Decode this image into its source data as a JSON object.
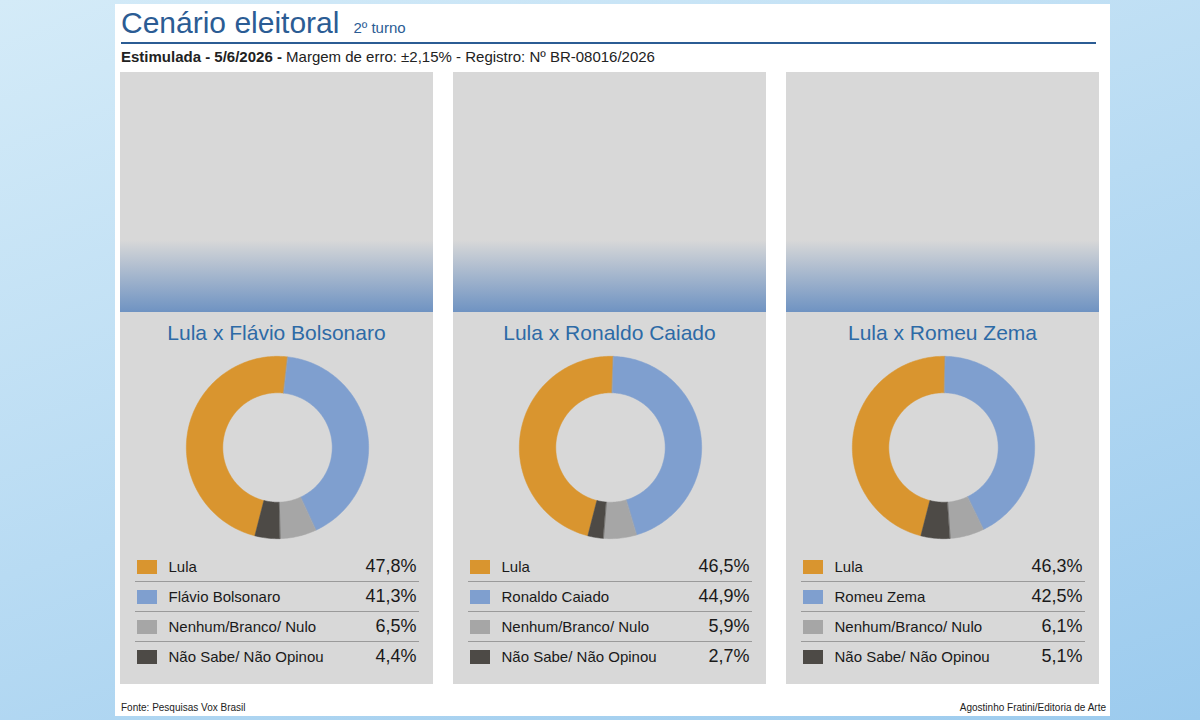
{
  "header": {
    "title": "Cenário eleitoral",
    "subtitle": "2º turno",
    "line_bold": "Estimulada - 5/6/2026 -",
    "line": "Margem de erro: ±2,15% - Registro: Nº BR-08016/2026"
  },
  "footer": {
    "source": "Fonte: Pesquisas Vox Brasil",
    "credit": "Agostinho Fratini/Editoria de Arte"
  },
  "chart_data": [
    {
      "type": "donut",
      "title": "Lula x Flávio Bolsonaro",
      "categories": [
        "Lula",
        "Flávio Bolsonaro",
        "Nenhum/Branco/ Nulo",
        "Não Sabe/ Não Opinou"
      ],
      "values": [
        47.8,
        41.3,
        6.5,
        4.4
      ],
      "value_labels": [
        "47,8%",
        "41,3%",
        "6,5%",
        "4,4%"
      ],
      "colors": [
        "#d9952f",
        "#7f9fcf",
        "#a6a6a6",
        "#4d4a46"
      ],
      "legend": "bottom"
    },
    {
      "type": "donut",
      "title": "Lula x Ronaldo Caiado",
      "categories": [
        "Lula",
        "Ronaldo Caiado",
        "Nenhum/Branco/ Nulo",
        "Não Sabe/ Não Opinou"
      ],
      "values": [
        46.5,
        44.9,
        5.9,
        2.7
      ],
      "value_labels": [
        "46,5%",
        "44,9%",
        "5,9%",
        "2,7%"
      ],
      "colors": [
        "#d9952f",
        "#7f9fcf",
        "#a6a6a6",
        "#4d4a46"
      ],
      "legend": "bottom"
    },
    {
      "type": "donut",
      "title": "Lula x Romeu Zema",
      "categories": [
        "Lula",
        "Romeu Zema",
        "Nenhum/Branco/ Nulo",
        "Não Sabe/ Não Opinou"
      ],
      "values": [
        46.3,
        42.5,
        6.1,
        5.1
      ],
      "value_labels": [
        "46,3%",
        "42,5%",
        "6,1%",
        "5,1%"
      ],
      "colors": [
        "#d9952f",
        "#7f9fcf",
        "#a6a6a6",
        "#4d4a46"
      ],
      "legend": "bottom"
    }
  ]
}
